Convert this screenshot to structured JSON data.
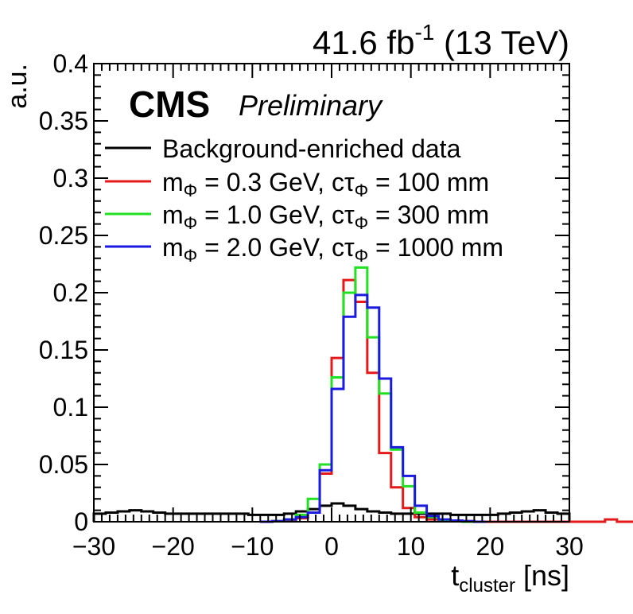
{
  "header": {
    "lumi_value": "41.6 fb",
    "lumi_exp": "-1",
    "energy": " (13 TeV)",
    "experiment": "CMS",
    "status": "Preliminary"
  },
  "chart_data": {
    "type": "line",
    "subtype": "step-histogram",
    "xlim": [
      -30,
      30
    ],
    "ylim": [
      0,
      0.4
    ],
    "xlabel": {
      "base": "t",
      "sub": "cluster",
      "unit": " [ns]"
    },
    "ylabel": "a.u.",
    "xticks": [
      -30,
      -20,
      -10,
      0,
      10,
      20,
      30
    ],
    "xtick_labels": [
      "−30",
      "−20",
      "−10",
      "0",
      "10",
      "20",
      "30"
    ],
    "yticks": [
      0,
      0.05,
      0.1,
      0.15,
      0.2,
      0.25,
      0.3,
      0.35,
      0.4
    ],
    "ytick_labels": [
      "0",
      "0.05",
      "0.1",
      "0.15",
      "0.2",
      "0.25",
      "0.3",
      "0.35",
      "0.4"
    ],
    "grid": false,
    "legend_position": "top-left",
    "bin_edges": [
      -30,
      -28.5,
      -27,
      -25.5,
      -24,
      -22.5,
      -21,
      -19.5,
      -18,
      -16.5,
      -15,
      -13.5,
      -12,
      -10.5,
      -9,
      -7.5,
      -6,
      -4.5,
      -3,
      -1.5,
      0,
      1.5,
      3,
      4.5,
      6,
      7.5,
      9,
      10.5,
      12,
      13.5,
      15,
      16.5,
      18,
      19.5,
      21,
      22.5,
      24,
      25.5,
      27,
      28.5,
      30
    ],
    "series": [
      {
        "legend_parts": [
          {
            "t": "Background-enriched data"
          }
        ],
        "color": "#000000",
        "x_start": -30,
        "bin_width": 1.5,
        "values": [
          0.007,
          0.008,
          0.009,
          0.01,
          0.009,
          0.008,
          0.007,
          0.007,
          0.007,
          0.007,
          0.007,
          0.007,
          0.007,
          0.006,
          0.006,
          0.006,
          0.007,
          0.009,
          0.011,
          0.014,
          0.016,
          0.014,
          0.011,
          0.009,
          0.008,
          0.007,
          0.007,
          0.007,
          0.007,
          0.007,
          0.006,
          0.006,
          0.006,
          0.006,
          0.007,
          0.008,
          0.009,
          0.01,
          0.008,
          0.007
        ]
      },
      {
        "legend_parts": [
          {
            "t": "m"
          },
          {
            "t": "Φ",
            "sub": true
          },
          {
            "t": " = 0.3 GeV, cτ"
          },
          {
            "t": "Φ",
            "sub": true
          },
          {
            "t": " = 100 mm"
          }
        ],
        "color": "#e41a1a",
        "x_start": -9,
        "bin_width": 1.5,
        "values": [
          0.0,
          0.0005,
          0.001,
          0.003,
          0.008,
          0.042,
          0.143,
          0.211,
          0.192,
          0.13,
          0.06,
          0.03,
          0.012,
          0.004,
          0.002,
          0.001,
          0.001,
          0.0005,
          0.0,
          0.0,
          0.0,
          0.0,
          0.0,
          0.0,
          0.0,
          0.0,
          0.0,
          0.0,
          0.0,
          0.002,
          0.0,
          0.0,
          0.0,
          0.0,
          0.0,
          0.0
        ]
      },
      {
        "legend_parts": [
          {
            "t": "m"
          },
          {
            "t": "Φ",
            "sub": true
          },
          {
            "t": " = 1.0 GeV, cτ"
          },
          {
            "t": "Φ",
            "sub": true
          },
          {
            "t": " = 300 mm"
          }
        ],
        "color": "#22e022",
        "x_start": -9,
        "bin_width": 1.5,
        "values": [
          0.0,
          0.0005,
          0.002,
          0.006,
          0.02,
          0.05,
          0.126,
          0.2,
          0.222,
          0.161,
          0.112,
          0.063,
          0.031,
          0.008,
          0.004,
          0.001,
          0.0005,
          0.0
        ]
      },
      {
        "legend_parts": [
          {
            "t": "m"
          },
          {
            "t": "Φ",
            "sub": true
          },
          {
            "t": " = 2.0 GeV, cτ"
          },
          {
            "t": "Φ",
            "sub": true
          },
          {
            "t": " = 1000 mm"
          }
        ],
        "color": "#1a1ae0",
        "x_start": -9,
        "bin_width": 1.5,
        "values": [
          0.0,
          0.0005,
          0.002,
          0.004,
          0.008,
          0.045,
          0.116,
          0.179,
          0.198,
          0.187,
          0.125,
          0.065,
          0.04,
          0.014,
          0.005,
          0.002,
          0.001,
          0.0005,
          0.0
        ]
      }
    ]
  }
}
